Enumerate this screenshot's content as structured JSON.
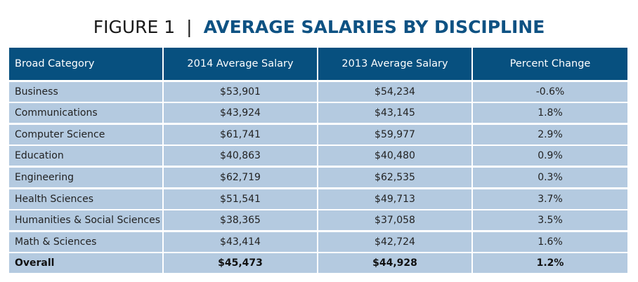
{
  "title": {
    "figure": "FIGURE 1",
    "separator": "|",
    "main": "AVERAGE SALARIES BY DISCIPLINE"
  },
  "colors": {
    "header_bg": "#07507f",
    "row_bg": "#b4cae0",
    "title_accent": "#0e5283"
  },
  "table": {
    "headers": [
      "Broad Category",
      "2014 Average Salary",
      "2013 Average Salary",
      "Percent Change"
    ],
    "rows": [
      [
        "Business",
        "$53,901",
        "$54,234",
        "-0.6%"
      ],
      [
        "Communications",
        "$43,924",
        "$43,145",
        "1.8%"
      ],
      [
        "Computer Science",
        "$61,741",
        "$59,977",
        "2.9%"
      ],
      [
        "Education",
        "$40,863",
        "$40,480",
        "0.9%"
      ],
      [
        "Engineering",
        "$62,719",
        "$62,535",
        "0.3%"
      ],
      [
        "Health Sciences",
        "$51,541",
        "$49,713",
        "3.7%"
      ],
      [
        "Humanities & Social Sciences",
        "$38,365",
        "$37,058",
        "3.5%"
      ],
      [
        "Math & Sciences",
        "$43,414",
        "$42,724",
        "1.6%"
      ],
      [
        "Overall",
        "$45,473",
        "$44,928",
        "1.2%"
      ]
    ]
  }
}
